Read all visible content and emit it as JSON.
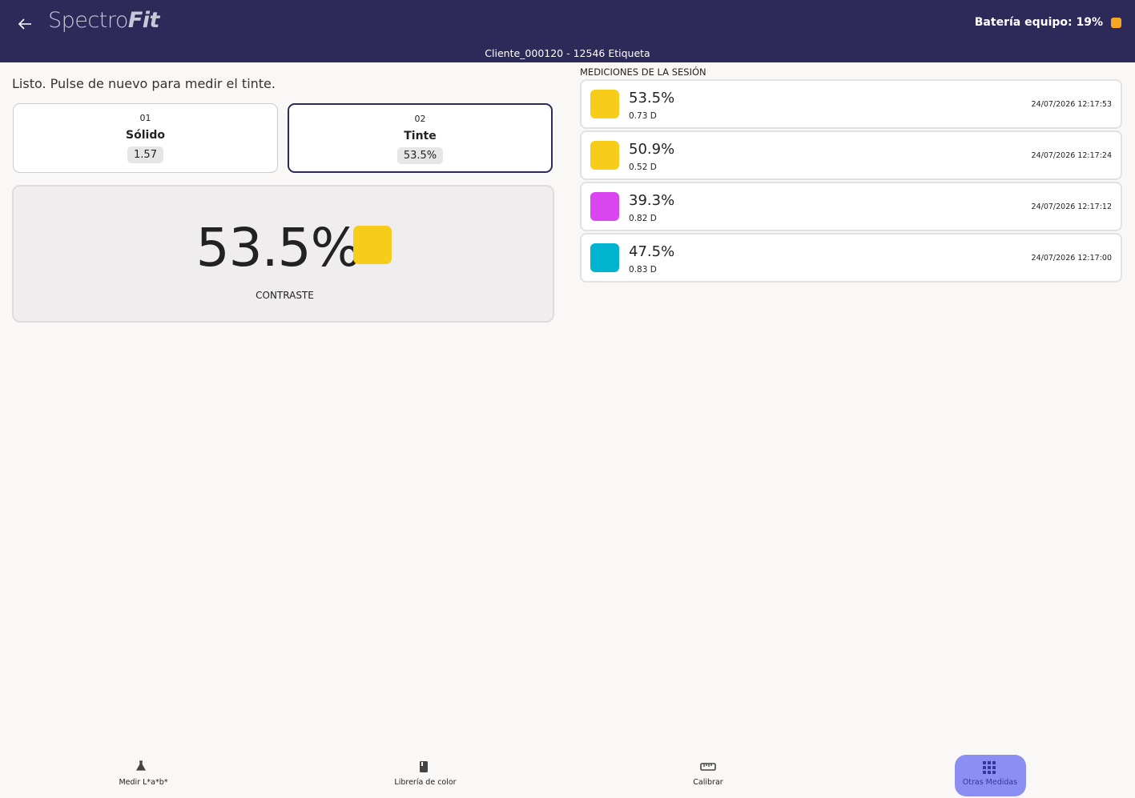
{
  "header": {
    "logo_light": "Spectro",
    "logo_bold": "Fit",
    "battery": "Batería equipo: 19%",
    "battery_color": "#f5a623",
    "subtitle": "Cliente_000120 - 12546 Etiqueta"
  },
  "status": "Listo. Pulse de nuevo para medir el tinte.",
  "steps": [
    {
      "number": "01",
      "label": "Sólido",
      "value": "1.57",
      "selected": false
    },
    {
      "number": "02",
      "label": "Tinte",
      "value": "53.5%",
      "selected": true
    }
  ],
  "result": {
    "value": "53.5%",
    "label": "CONTRASTE",
    "color": "#f8cc1b"
  },
  "session": {
    "title": "MEDICIONES DE LA SESIÓN",
    "items": [
      {
        "value": "53.5%",
        "density": "0.73 D",
        "time": "24/07/2026 12:17:53",
        "color": "#f8cc1b"
      },
      {
        "value": "50.9%",
        "density": "0.52 D",
        "time": "24/07/2026 12:17:24",
        "color": "#f8cc1b"
      },
      {
        "value": "39.3%",
        "density": "0.82 D",
        "time": "24/07/2026 12:17:12",
        "color": "#d946ef"
      },
      {
        "value": "47.5%",
        "density": "0.83 D",
        "time": "24/07/2026 12:17:00",
        "color": "#00b4cf"
      }
    ]
  },
  "nav": [
    {
      "label": "Medir L*a*b*",
      "active": false
    },
    {
      "label": "Librería de color",
      "active": false
    },
    {
      "label": "Calibrar",
      "active": false
    },
    {
      "label": "Otras Medidas",
      "active": true
    }
  ]
}
